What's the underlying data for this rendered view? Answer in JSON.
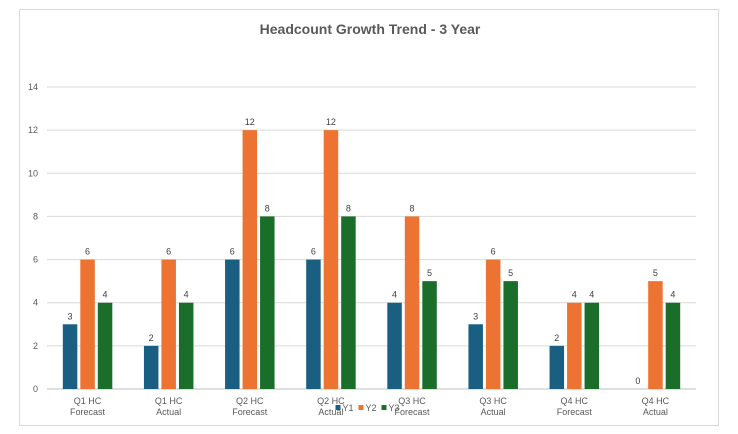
{
  "chart_data": {
    "type": "bar",
    "title": "Headcount Growth Trend - 3 Year",
    "xlabel": "",
    "ylabel": "",
    "categories": [
      [
        "Q1 HC",
        "Forecast"
      ],
      [
        "Q1 HC",
        "Actual"
      ],
      [
        "Q2 HC",
        "Forecast"
      ],
      [
        "Q2 HC",
        "Actual"
      ],
      [
        "Q3 HC",
        "Forecast"
      ],
      [
        "Q3 HC",
        "Actual"
      ],
      [
        "Q4 HC",
        "Forecast"
      ],
      [
        "Q4 HC",
        "Actual"
      ]
    ],
    "series": [
      {
        "name": "Y1",
        "color": "#1a5f82",
        "values": [
          3,
          2,
          6,
          6,
          4,
          3,
          2,
          0
        ]
      },
      {
        "name": "Y2",
        "color": "#ec7331",
        "values": [
          6,
          6,
          12,
          12,
          8,
          6,
          4,
          5
        ]
      },
      {
        "name": "Y3",
        "color": "#1b6e2a",
        "values": [
          4,
          4,
          8,
          8,
          5,
          5,
          4,
          4
        ]
      }
    ],
    "ylim": [
      0,
      14
    ],
    "yticks": [
      0,
      2,
      4,
      6,
      8,
      10,
      12,
      14
    ],
    "grid": true,
    "data_labels": true,
    "legend_position": "bottom"
  }
}
